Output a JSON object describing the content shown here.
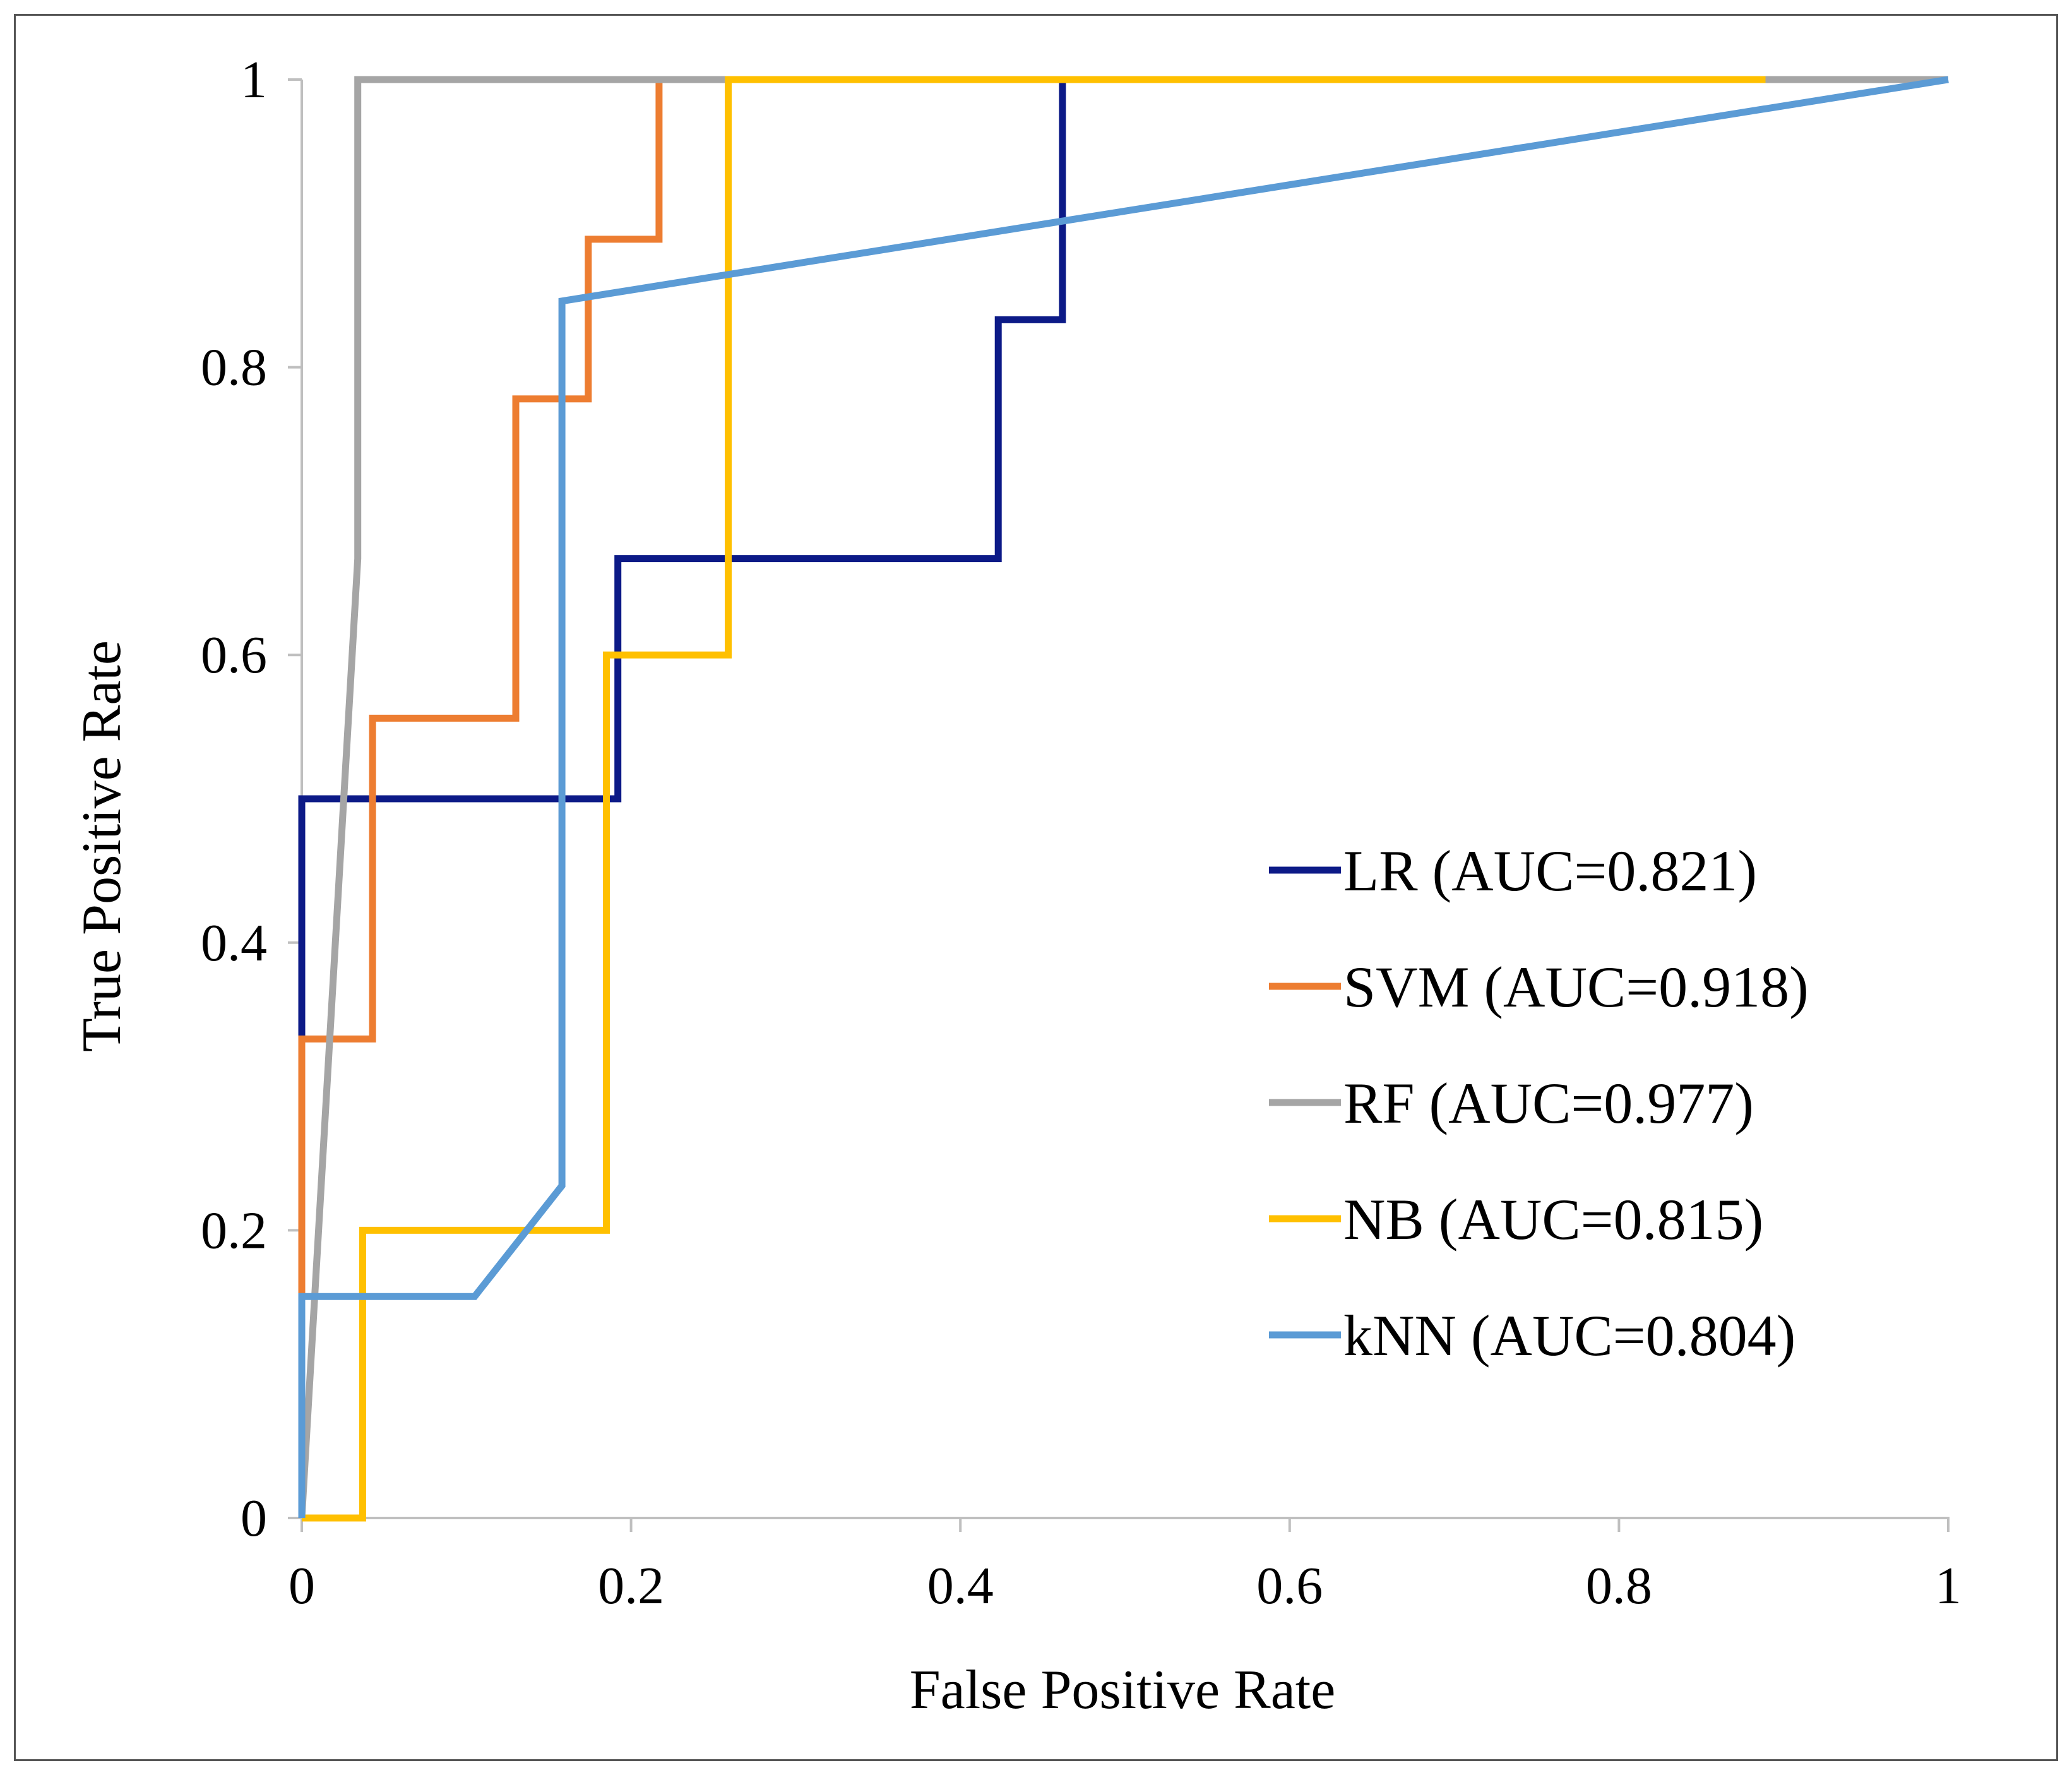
{
  "chart_data": {
    "type": "line",
    "title": "",
    "xlabel": "False Positive Rate",
    "ylabel": "True Positive Rate",
    "xlim": [
      0,
      1
    ],
    "ylim": [
      0,
      1
    ],
    "grid": false,
    "legend_position": "right",
    "x_ticks": [
      0,
      0.2,
      0.4,
      0.6,
      0.8,
      1
    ],
    "x_tick_labels": [
      "0",
      "0.2",
      "0.4",
      "0.6",
      "0.8",
      "1"
    ],
    "y_ticks": [
      0,
      0.2,
      0.4,
      0.6,
      0.8,
      1
    ],
    "y_tick_labels": [
      "0",
      "0.2",
      "0.4",
      "0.6",
      "0.8",
      "1"
    ],
    "series": [
      {
        "name": "LR (AUC=0.821)",
        "color": "#0c1a87",
        "x": [
          0,
          0,
          0.192,
          0.192,
          0.423,
          0.423,
          0.462,
          0.462,
          1
        ],
        "y": [
          0,
          0.5,
          0.5,
          0.667,
          0.667,
          0.833,
          0.833,
          1,
          1
        ]
      },
      {
        "name": "SVM (AUC=0.918)",
        "color": "#ed7d31",
        "x": [
          0,
          0,
          0.043,
          0.043,
          0.13,
          0.13,
          0.174,
          0.174,
          0.217,
          0.217,
          1
        ],
        "y": [
          0,
          0.333,
          0.333,
          0.556,
          0.556,
          0.778,
          0.778,
          0.889,
          0.889,
          1,
          1
        ]
      },
      {
        "name": "RF (AUC=0.977)",
        "color": "#a5a5a5",
        "x": [
          0,
          0.034,
          0.034,
          1
        ],
        "y": [
          0,
          0.667,
          1,
          1
        ]
      },
      {
        "name": "NB (AUC=0.815)",
        "color": "#ffc000",
        "x": [
          0,
          0.037,
          0.037,
          0.185,
          0.185,
          0.259,
          0.259,
          0.889
        ],
        "y": [
          0,
          0,
          0.2,
          0.2,
          0.6,
          0.6,
          1,
          1
        ]
      },
      {
        "name": "kNN (AUC=0.804)",
        "color": "#5b9bd5",
        "x": [
          0,
          0,
          0.105,
          0.158,
          0.158,
          1
        ],
        "y": [
          0,
          0.154,
          0.154,
          0.231,
          0.846,
          1
        ]
      }
    ]
  }
}
